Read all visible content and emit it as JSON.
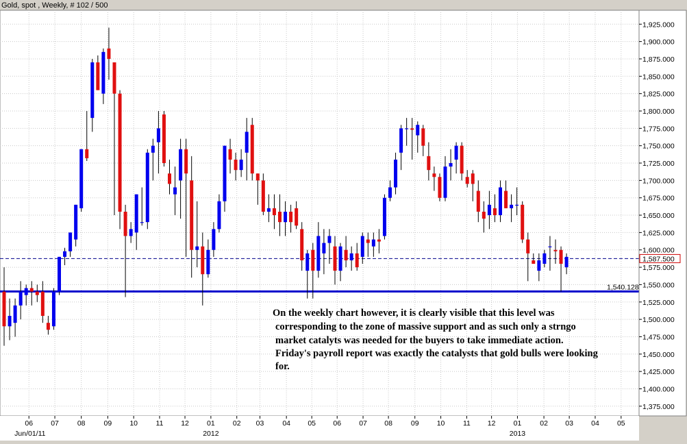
{
  "header": {
    "title": "Gold, spot , Weekly, # 102 / 500"
  },
  "colors": {
    "up": "#0000ee",
    "down": "#e01010",
    "support": "#0000cc",
    "price_line": "#00008b",
    "price_label_border": "#cc0000",
    "grid": "#c8c8c8",
    "frame": "#d4d0c8",
    "panel": "#ffffff"
  },
  "chart_data": {
    "type": "candlestick",
    "title": "Gold, spot , Weekly, # 102 / 500",
    "ylim": [
      1361,
      1945
    ],
    "y_ticks": [
      1375,
      1400,
      1425,
      1450,
      1475,
      1500,
      1525,
      1550,
      1575,
      1600,
      1625,
      1650,
      1675,
      1700,
      1725,
      1750,
      1775,
      1800,
      1825,
      1850,
      1875,
      1900,
      1925
    ],
    "y_tick_labels": [
      "1,375.000",
      "1,400.000",
      "1,425.000",
      "1,450.000",
      "1,475.000",
      "1,500.000",
      "1,525.000",
      "1,550.000",
      "1,575.000",
      "1,600.000",
      "1,625.000",
      "1,650.000",
      "1,675.000",
      "1,700.000",
      "1,725.000",
      "1,750.000",
      "1,775.000",
      "1,800.000",
      "1,825.000",
      "1,850.000",
      "1,875.000",
      "1,900.000",
      "1,925.000"
    ],
    "x_ticks": [
      {
        "label": "06",
        "bar": 4.5
      },
      {
        "label": "07",
        "bar": 9.2
      },
      {
        "label": "08",
        "bar": 14.0
      },
      {
        "label": "09",
        "bar": 18.8
      },
      {
        "label": "10",
        "bar": 23.5
      },
      {
        "label": "11",
        "bar": 28.2
      },
      {
        "label": "12",
        "bar": 32.8
      },
      {
        "label": "01",
        "bar": 37.5
      },
      {
        "label": "02",
        "bar": 42.2
      },
      {
        "label": "03",
        "bar": 46.4
      },
      {
        "label": "04",
        "bar": 51.2
      },
      {
        "label": "05",
        "bar": 55.8
      },
      {
        "label": "06",
        "bar": 60.4
      },
      {
        "label": "07",
        "bar": 65.1
      },
      {
        "label": "08",
        "bar": 69.7
      },
      {
        "label": "09",
        "bar": 74.5
      },
      {
        "label": "10",
        "bar": 79.2
      },
      {
        "label": "11",
        "bar": 83.9
      },
      {
        "label": "12",
        "bar": 88.4
      },
      {
        "label": "01",
        "bar": 93.1
      },
      {
        "label": "02",
        "bar": 97.9
      },
      {
        "label": "03",
        "bar": 102.5
      },
      {
        "label": "04",
        "bar": 107.2
      },
      {
        "label": "05",
        "bar": 111.9
      }
    ],
    "x_sub_labels": [
      {
        "label": "Jun/01/11",
        "bar": 4.7
      },
      {
        "label": "2012",
        "bar": 37.5
      },
      {
        "label": "2013",
        "bar": 93.1
      }
    ],
    "reference_lines": [
      {
        "name": "current price",
        "value": 1587.5,
        "label": "1,587.500",
        "style": "dashed"
      },
      {
        "name": "support",
        "value": 1540.128,
        "label": "1,540.128",
        "style": "solid"
      }
    ],
    "annotation": [
      " On the weekly chart however, it is clearly visible that this level was",
      "corresponding to the zone of massive support and as such   only a strngo",
      "market catalyts was needed  for the  buyers to take immediate action.",
      "Friday's payroll report was exactly the catalysts that gold bulls were looking",
      "for."
    ],
    "ohlc": [
      [
        1540,
        1575,
        1462,
        1490
      ],
      [
        1490,
        1530,
        1470,
        1505
      ],
      [
        1495,
        1530,
        1475,
        1520
      ],
      [
        1520,
        1555,
        1500,
        1540
      ],
      [
        1535,
        1550,
        1520,
        1545
      ],
      [
        1545,
        1555,
        1520,
        1540
      ],
      [
        1540,
        1550,
        1525,
        1535
      ],
      [
        1540,
        1555,
        1495,
        1505
      ],
      [
        1495,
        1505,
        1478,
        1485
      ],
      [
        1490,
        1545,
        1485,
        1540
      ],
      [
        1540,
        1590,
        1535,
        1590
      ],
      [
        1590,
        1603,
        1578,
        1598
      ],
      [
        1598,
        1625,
        1590,
        1625
      ],
      [
        1615,
        1665,
        1605,
        1665
      ],
      [
        1660,
        1745,
        1655,
        1745
      ],
      [
        1745,
        1800,
        1728,
        1732
      ],
      [
        1790,
        1875,
        1770,
        1870
      ],
      [
        1870,
        1880,
        1830,
        1830
      ],
      [
        1825,
        1890,
        1810,
        1885
      ],
      [
        1890,
        1920,
        1845,
        1875
      ],
      [
        1870,
        1870,
        1650,
        1825
      ],
      [
        1825,
        1830,
        1630,
        1655
      ],
      [
        1655,
        1665,
        1532,
        1620
      ],
      [
        1620,
        1640,
        1610,
        1630
      ],
      [
        1625,
        1680,
        1600,
        1680
      ],
      [
        1640,
        1690,
        1635,
        1640
      ],
      [
        1640,
        1745,
        1630,
        1740
      ],
      [
        1740,
        1760,
        1700,
        1750
      ],
      [
        1755,
        1800,
        1710,
        1775
      ],
      [
        1795,
        1800,
        1720,
        1725
      ],
      [
        1710,
        1730,
        1680,
        1695
      ],
      [
        1680,
        1720,
        1650,
        1690
      ],
      [
        1700,
        1760,
        1645,
        1745
      ],
      [
        1745,
        1760,
        1590,
        1710
      ],
      [
        1700,
        1735,
        1560,
        1600
      ],
      [
        1600,
        1670,
        1575,
        1605
      ],
      [
        1605,
        1625,
        1520,
        1565
      ],
      [
        1565,
        1615,
        1560,
        1600
      ],
      [
        1600,
        1640,
        1590,
        1630
      ],
      [
        1630,
        1680,
        1625,
        1670
      ],
      [
        1670,
        1750,
        1655,
        1750
      ],
      [
        1745,
        1760,
        1710,
        1730
      ],
      [
        1730,
        1740,
        1700,
        1715
      ],
      [
        1715,
        1745,
        1705,
        1730
      ],
      [
        1740,
        1790,
        1700,
        1770
      ],
      [
        1780,
        1790,
        1700,
        1710
      ],
      [
        1710,
        1710,
        1665,
        1700
      ],
      [
        1700,
        1710,
        1650,
        1655
      ],
      [
        1655,
        1680,
        1640,
        1660
      ],
      [
        1660,
        1680,
        1630,
        1650
      ],
      [
        1655,
        1680,
        1620,
        1640
      ],
      [
        1640,
        1670,
        1620,
        1655
      ],
      [
        1655,
        1665,
        1625,
        1640
      ],
      [
        1660,
        1670,
        1630,
        1635
      ],
      [
        1630,
        1640,
        1570,
        1585
      ],
      [
        1570,
        1600,
        1530,
        1595
      ],
      [
        1600,
        1610,
        1530,
        1570
      ],
      [
        1570,
        1640,
        1560,
        1620
      ],
      [
        1595,
        1630,
        1565,
        1610
      ],
      [
        1610,
        1630,
        1580,
        1620
      ],
      [
        1605,
        1620,
        1550,
        1570
      ],
      [
        1570,
        1610,
        1555,
        1605
      ],
      [
        1600,
        1620,
        1575,
        1585
      ],
      [
        1585,
        1605,
        1570,
        1595
      ],
      [
        1595,
        1610,
        1570,
        1575
      ],
      [
        1590,
        1625,
        1580,
        1620
      ],
      [
        1615,
        1625,
        1590,
        1610
      ],
      [
        1605,
        1625,
        1590,
        1615
      ],
      [
        1615,
        1630,
        1595,
        1612
      ],
      [
        1620,
        1680,
        1615,
        1675
      ],
      [
        1675,
        1700,
        1670,
        1690
      ],
      [
        1690,
        1740,
        1680,
        1730
      ],
      [
        1740,
        1780,
        1715,
        1775
      ],
      [
        1775,
        1790,
        1750,
        1775
      ],
      [
        1775,
        1790,
        1730,
        1773
      ],
      [
        1765,
        1785,
        1740,
        1780
      ],
      [
        1775,
        1780,
        1735,
        1750
      ],
      [
        1735,
        1755,
        1700,
        1715
      ],
      [
        1710,
        1720,
        1685,
        1705
      ],
      [
        1705,
        1710,
        1670,
        1675
      ],
      [
        1675,
        1735,
        1670,
        1720
      ],
      [
        1720,
        1745,
        1700,
        1725
      ],
      [
        1730,
        1755,
        1710,
        1750
      ],
      [
        1750,
        1755,
        1700,
        1710
      ],
      [
        1705,
        1715,
        1690,
        1695
      ],
      [
        1710,
        1715,
        1670,
        1695
      ],
      [
        1685,
        1700,
        1640,
        1655
      ],
      [
        1655,
        1670,
        1625,
        1645
      ],
      [
        1650,
        1685,
        1630,
        1665
      ],
      [
        1660,
        1680,
        1640,
        1650
      ],
      [
        1650,
        1700,
        1640,
        1690
      ],
      [
        1685,
        1700,
        1660,
        1660
      ],
      [
        1660,
        1680,
        1640,
        1665
      ],
      [
        1665,
        1690,
        1650,
        1665
      ],
      [
        1665,
        1670,
        1610,
        1615
      ],
      [
        1615,
        1625,
        1555,
        1595
      ],
      [
        1585,
        1595,
        1580,
        1580
      ],
      [
        1570,
        1595,
        1555,
        1585
      ],
      [
        1580,
        1600,
        1575,
        1595
      ],
      [
        1605,
        1620,
        1570,
        1605
      ],
      [
        1600,
        1615,
        1580,
        1598
      ],
      [
        1600,
        1605,
        1540,
        1580
      ],
      [
        1575,
        1595,
        1565,
        1590
      ]
    ]
  }
}
